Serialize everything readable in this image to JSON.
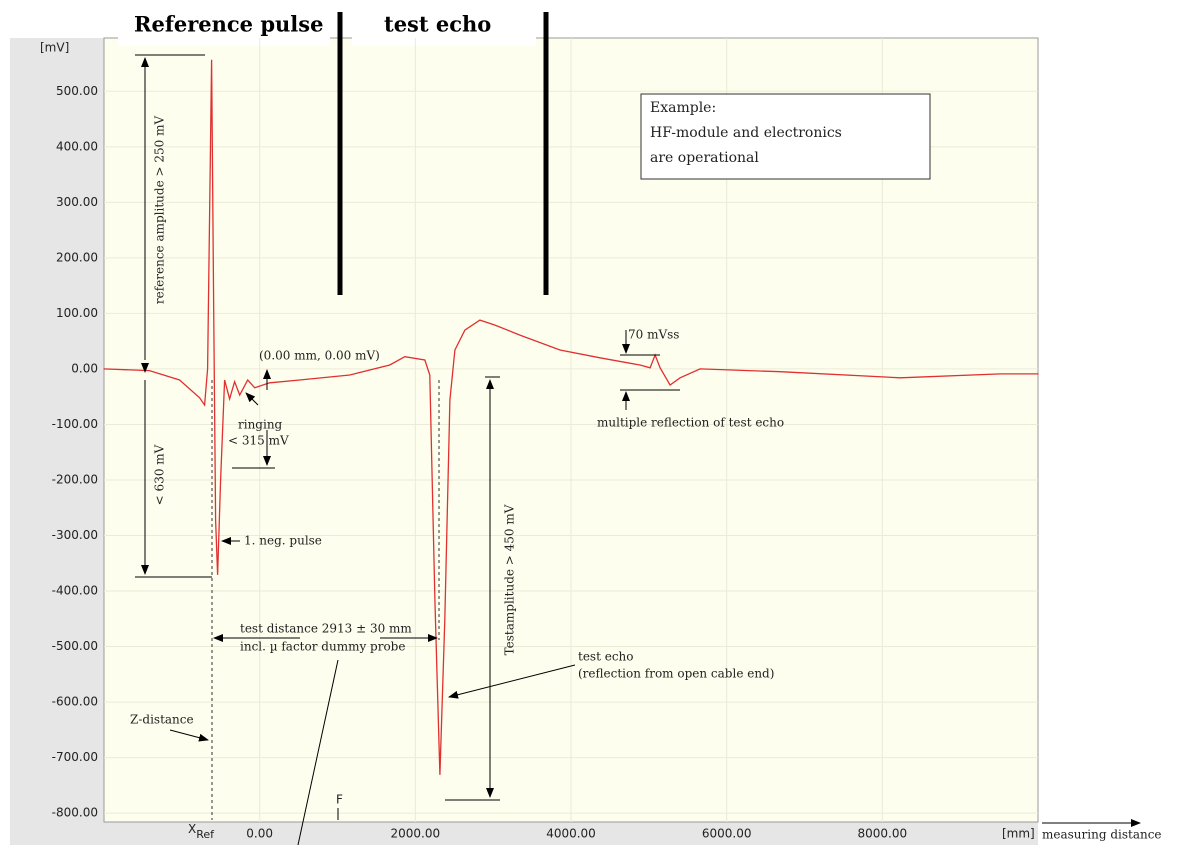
{
  "chart_data": {
    "type": "line",
    "header": [
      "Reference pulse",
      "test echo"
    ],
    "y_unit": "[mV]",
    "x_unit": "[mm]",
    "x_axis_label": "measuring distance",
    "x_ref_label": {
      "main": "X",
      "sub": "Ref"
    },
    "marker_label": "F",
    "info_box": [
      "Example:",
      "HF-module and electronics",
      "are operational"
    ],
    "annotations": [
      "reference amplitude > 250 mV",
      "< 630 mV",
      "(0.00 mm, 0.00 mV)",
      "ringing",
      "< 315 mV",
      "1. neg. pulse",
      "test distance 2913 ± 30 mm",
      "incl. µ factor dummy probe",
      "Z-distance",
      "Testamplitude > 450 mV",
      "test echo",
      "(reflection from open cable end)",
      "70 mVss",
      "multiple reflection of test echo"
    ],
    "xlim": [
      -2000,
      10000
    ],
    "ylim": [
      -816,
      596
    ],
    "grid": true,
    "xticks": [
      {
        "value": 0,
        "label": "0.00"
      },
      {
        "value": 2000,
        "label": "2000.00"
      },
      {
        "value": 4000,
        "label": "4000.00"
      },
      {
        "value": 6000,
        "label": "6000.00"
      },
      {
        "value": 8000,
        "label": "8000.00"
      }
    ],
    "yticks": [
      {
        "value": 500,
        "label": "500.00"
      },
      {
        "value": 400,
        "label": "400.00"
      },
      {
        "value": 300,
        "label": "300.00"
      },
      {
        "value": 200,
        "label": "200.00"
      },
      {
        "value": 100,
        "label": "100.00"
      },
      {
        "value": 0,
        "label": "0.00"
      },
      {
        "value": -100,
        "label": "-100.00"
      },
      {
        "value": -200,
        "label": "-200.00"
      },
      {
        "value": -300,
        "label": "-300.00"
      },
      {
        "value": -400,
        "label": "-400.00"
      },
      {
        "value": -500,
        "label": "-500.00"
      },
      {
        "value": -600,
        "label": "-600.00"
      },
      {
        "value": -700,
        "label": "-700.00"
      },
      {
        "value": -800,
        "label": "-800.00"
      }
    ],
    "x": [
      -2006,
      -1415,
      -1029,
      -772,
      -707,
      -669,
      -617,
      -592,
      -566,
      -540,
      -502,
      -450,
      -386,
      -322,
      -257,
      -154,
      -64,
      129,
      514,
      1158,
      1672,
      1865,
      2122,
      2186,
      2251,
      2315,
      2379,
      2444,
      2508,
      2637,
      2830,
      3023,
      3344,
      3859,
      4373,
      4887,
      5016,
      5080,
      5145,
      5273,
      5402,
      5659,
      6688,
      8231,
      9518,
      10006
    ],
    "series": [
      {
        "color": "#e03030",
        "values": [
          0,
          -3,
          -20,
          -52,
          -65,
          0,
          557,
          124,
          -272,
          -371,
          -200,
          -20,
          -54,
          -23,
          -47,
          -20,
          -34,
          -25,
          -20,
          -11,
          7,
          22,
          16,
          -11,
          -416,
          -731,
          -452,
          -56,
          34,
          70,
          88,
          79,
          61,
          34,
          20,
          7,
          2,
          25,
          2,
          -29,
          -16,
          0,
          -5,
          -16,
          -9,
          -9
        ]
      }
    ]
  }
}
